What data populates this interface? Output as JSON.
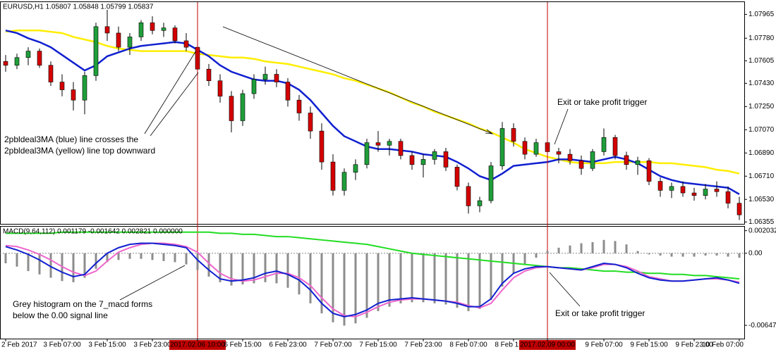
{
  "chart_data": [
    {
      "type": "candlestick",
      "title": "EURUSD,H1  1.05807 1.05848 1.05799 1.05837",
      "categories": [
        "2 Feb 2017",
        null,
        null,
        null,
        null,
        "3 Feb 07:00",
        null,
        null,
        null,
        "3 Feb 15:00",
        null,
        null,
        null,
        "3 Feb 23:00",
        null,
        null,
        null,
        "2017.02.06 10:00",
        null,
        null,
        null,
        "6 Feb 15:00",
        null,
        null,
        null,
        "6 Feb 23:00",
        null,
        null,
        null,
        "7 Feb 07:00",
        null,
        null,
        null,
        "7 Feb 15:00",
        null,
        null,
        null,
        "7 Feb 23:00",
        null,
        null,
        null,
        "8 Feb 07:00",
        null,
        null,
        null,
        "8 Feb 15:00",
        null,
        null,
        "2017.02.09 00:00",
        null,
        null,
        null,
        null,
        "9 Feb 07:00",
        null,
        null,
        null,
        "9 Feb 15:00",
        null,
        null,
        null,
        "9 Feb 23:00",
        null,
        null,
        null,
        "10 Feb 07:00"
      ],
      "open": [
        1.076,
        1.0757,
        1.0763,
        1.0768,
        1.0757,
        1.0744,
        1.0738,
        1.073,
        1.0749,
        1.0787,
        1.0782,
        1.0771,
        1.0779,
        1.079,
        1.0784,
        1.0786,
        1.0776,
        1.0771,
        1.0754,
        1.0745,
        1.0733,
        1.0714,
        1.0735,
        1.0746,
        1.075,
        1.0744,
        1.073,
        1.072,
        1.0706,
        1.0682,
        1.066,
        1.0674,
        1.068,
        1.0697,
        1.0695,
        1.0698,
        1.0687,
        1.068,
        1.0684,
        1.069,
        1.0678,
        1.0663,
        1.0648,
        1.0652,
        1.0679,
        1.0708,
        1.0698,
        1.0688,
        1.0697,
        1.069,
        1.0688,
        1.0683,
        1.0677,
        1.069,
        1.0701,
        1.0687,
        1.068,
        1.0683,
        1.0667,
        1.066,
        1.0663,
        1.0658,
        1.0656,
        1.0661,
        1.0659,
        1.065
      ],
      "high": [
        1.0765,
        1.0766,
        1.0771,
        1.077,
        1.076,
        1.075,
        1.0744,
        1.0752,
        1.079,
        1.08,
        1.0787,
        1.0782,
        1.0792,
        1.0795,
        1.079,
        1.0788,
        1.0782,
        1.0773,
        1.0758,
        1.075,
        1.0737,
        1.0738,
        1.075,
        1.0756,
        1.0754,
        1.0747,
        1.0734,
        1.0725,
        1.0712,
        1.0688,
        1.0677,
        1.0684,
        1.07,
        1.0706,
        1.07,
        1.07,
        1.069,
        1.0688,
        1.0692,
        1.0693,
        1.068,
        1.0666,
        1.0655,
        1.0682,
        1.0713,
        1.0712,
        1.0701,
        1.07,
        1.07,
        1.0693,
        1.0692,
        1.0687,
        1.0692,
        1.0708,
        1.0703,
        1.069,
        1.0686,
        1.0685,
        1.067,
        1.0666,
        1.0667,
        1.0662,
        1.0665,
        1.0667,
        1.0663,
        1.0655
      ],
      "low": [
        1.0752,
        1.0754,
        1.0757,
        1.0755,
        1.0741,
        1.0733,
        1.0722,
        1.0719,
        1.0745,
        1.0776,
        1.0768,
        1.0765,
        1.0776,
        1.0781,
        1.0779,
        1.0774,
        1.0768,
        1.075,
        1.0741,
        1.0728,
        1.0705,
        1.071,
        1.0731,
        1.0742,
        1.074,
        1.0725,
        1.0714,
        1.07,
        1.0676,
        1.0656,
        1.0656,
        1.0668,
        1.0677,
        1.069,
        1.0687,
        1.0684,
        1.0676,
        1.067,
        1.068,
        1.0675,
        1.066,
        1.0642,
        1.0643,
        1.065,
        1.0676,
        1.0694,
        1.0684,
        1.0686,
        1.0686,
        1.0681,
        1.068,
        1.0672,
        1.0675,
        1.0687,
        1.0684,
        1.0676,
        1.0672,
        1.0664,
        1.0655,
        1.0654,
        1.0655,
        1.0652,
        1.0653,
        1.0655,
        1.0646,
        1.0637
      ],
      "close": [
        1.0757,
        1.0763,
        1.0768,
        1.0757,
        1.0744,
        1.0738,
        1.073,
        1.0749,
        1.0787,
        1.0782,
        1.0771,
        1.0779,
        1.079,
        1.0784,
        1.0786,
        1.0776,
        1.0771,
        1.0754,
        1.0745,
        1.0733,
        1.0714,
        1.0735,
        1.0746,
        1.075,
        1.0744,
        1.073,
        1.072,
        1.0706,
        1.0682,
        1.066,
        1.0674,
        1.068,
        1.0697,
        1.0695,
        1.0698,
        1.0687,
        1.068,
        1.0684,
        1.069,
        1.0678,
        1.0663,
        1.0648,
        1.0652,
        1.0679,
        1.0708,
        1.0698,
        1.0688,
        1.0697,
        1.069,
        1.0688,
        1.0683,
        1.0677,
        1.069,
        1.0701,
        1.0687,
        1.068,
        1.0683,
        1.0667,
        1.066,
        1.0663,
        1.0658,
        1.0656,
        1.0661,
        1.0659,
        1.065,
        1.0641
      ],
      "up_color": "#1f9e3a",
      "down_color": "#d40000",
      "series": [
        {
          "color": "#ffee00",
          "values": [
            1.0783,
            1.0784,
            1.0784,
            1.0784,
            1.0783,
            1.0782,
            1.0779,
            1.0777,
            1.0775,
            1.0772,
            1.077,
            1.0769,
            1.0768,
            1.0768,
            1.0768,
            1.0768,
            1.0768,
            1.0766,
            1.0765,
            1.0764,
            1.0763,
            1.0763,
            1.0762,
            1.076,
            1.0759,
            1.0758,
            1.0756,
            1.0754,
            1.0752,
            1.075,
            1.0747,
            1.0745,
            1.0742,
            1.0739,
            1.0736,
            1.0732,
            1.0728,
            1.0725,
            1.0721,
            1.0718,
            1.0715,
            1.0712,
            1.0708,
            1.0705,
            1.0701,
            1.0697,
            1.0692,
            1.0689,
            1.0686,
            1.0684,
            1.0682,
            1.0681,
            1.0681,
            1.0681,
            1.0682,
            1.0682,
            1.0682,
            1.0682,
            1.0681,
            1.0681,
            1.068,
            1.0679,
            1.0678,
            1.0676,
            1.0675,
            1.0673
          ]
        },
        {
          "color": "#1020d0",
          "values": [
            1.0784,
            1.0782,
            1.0778,
            1.0775,
            1.0771,
            1.0765,
            1.0759,
            1.0753,
            1.0757,
            1.0764,
            1.0767,
            1.077,
            1.0772,
            1.0773,
            1.0774,
            1.0775,
            1.0774,
            1.0769,
            1.0764,
            1.0757,
            1.0752,
            1.0749,
            1.0746,
            1.0745,
            1.0745,
            1.0743,
            1.0738,
            1.073,
            1.072,
            1.071,
            1.0702,
            1.0698,
            1.0694,
            1.0692,
            1.0692,
            1.0691,
            1.069,
            1.0688,
            1.0687,
            1.0686,
            1.0682,
            1.0677,
            1.0671,
            1.0668,
            1.0673,
            1.0679,
            1.068,
            1.0681,
            1.0682,
            1.0684,
            1.0684,
            1.0683,
            1.0682,
            1.0684,
            1.0686,
            1.0684,
            1.0681,
            1.0676,
            1.0671,
            1.0668,
            1.0666,
            1.0665,
            1.0664,
            1.0663,
            1.0662,
            1.0657
          ]
        }
      ],
      "ylim": [
        1.0634,
        1.0806
      ],
      "yticks": [
        1.07965,
        {
          "value": 1.0778,
          "label": "1.07780"
        },
        1.07605,
        {
          "value": 1.0743,
          "label": "1.07430"
        },
        {
          "value": 1.0725,
          "label": "1.07250"
        },
        {
          "value": 1.0707,
          "label": "1.07070"
        },
        {
          "value": 1.0689,
          "label": "1.06890"
        },
        {
          "value": 1.0671,
          "label": "1.06710"
        },
        {
          "value": 1.0653,
          "label": "1.06530"
        },
        1.06355
      ],
      "annotations": [
        {
          "lines": [
            "2pbldeal3MA (blue) line crosses the",
            "2pbldeal3MA (yellow) line top downward"
          ]
        },
        {
          "lines": [
            "Exit or take profit trigger"
          ]
        }
      ]
    },
    {
      "type": "macd",
      "title": "MACD(9,64,112) 0.001179 -0.001642 0.002821 0.000000",
      "series": [
        {
          "kind": "bar",
          "color": "#8c8c8c",
          "values": [
            -0.0009,
            -0.0012,
            -0.0016,
            -0.0019,
            -0.0022,
            -0.0025,
            -0.0026,
            -0.0022,
            -0.0014,
            -0.0008,
            -0.0006,
            -0.0005,
            -0.0005,
            -0.0006,
            -0.0007,
            -0.0008,
            -0.001,
            -0.0015,
            -0.0021,
            -0.0026,
            -0.0029,
            -0.0028,
            -0.0027,
            -0.0026,
            -0.0027,
            -0.0031,
            -0.0037,
            -0.0045,
            -0.0054,
            -0.0062,
            -0.0065,
            -0.0063,
            -0.0058,
            -0.0052,
            -0.0048,
            -0.0045,
            -0.0044,
            -0.0044,
            -0.0045,
            -0.0046,
            -0.0049,
            -0.0052,
            -0.005,
            -0.0042,
            -0.003,
            -0.0018,
            -0.001,
            -0.0004,
            0.0002,
            0.0005,
            0.0007,
            0.0009,
            0.001,
            0.0012,
            0.0011,
            0.0008,
            0.0002,
            -0.0001,
            -0.0002,
            -0.0003,
            -0.0003,
            -0.0003,
            -0.0002,
            -0.0002,
            -0.0003,
            -0.0004
          ]
        },
        {
          "kind": "line",
          "color": "#22dd22",
          "values": [
            0.0018,
            0.0018,
            0.0018,
            0.0018,
            0.0018,
            0.0019,
            0.0019,
            0.0019,
            0.0019,
            0.0019,
            0.0019,
            0.0019,
            0.0019,
            0.0019,
            0.0019,
            0.0019,
            0.0019,
            0.0019,
            0.0019,
            0.0018,
            0.0018,
            0.0017,
            0.0017,
            0.0016,
            0.0015,
            0.0015,
            0.0014,
            0.0013,
            0.0012,
            0.0011,
            0.001,
            0.0009,
            0.0008,
            0.0006,
            0.0004,
            0.0002,
            0.0,
            -0.0001,
            -0.0002,
            -0.0003,
            -0.0004,
            -0.0005,
            -0.0006,
            -0.0007,
            -0.0008,
            -0.0009,
            -0.001,
            -0.0011,
            -0.0012,
            -0.0013,
            -0.0013,
            -0.0014,
            -0.0015,
            -0.0016,
            -0.0016,
            -0.0017,
            -0.0017,
            -0.0018,
            -0.0018,
            -0.0019,
            -0.0019,
            -0.002,
            -0.002,
            -0.0021,
            -0.0022,
            -0.0023
          ]
        },
        {
          "kind": "line",
          "color": "#ee66cc",
          "values": [
            0.0007,
            0.0006,
            0.0003,
            -0.0001,
            -0.0006,
            -0.0012,
            -0.0017,
            -0.002,
            -0.0016,
            -0.0007,
            0.0001,
            0.0005,
            0.0008,
            0.0009,
            0.0009,
            0.0008,
            0.0006,
            0.0001,
            -0.0009,
            -0.0018,
            -0.0023,
            -0.0025,
            -0.0024,
            -0.0021,
            -0.0018,
            -0.0018,
            -0.0022,
            -0.0029,
            -0.004,
            -0.005,
            -0.0056,
            -0.0057,
            -0.0053,
            -0.0048,
            -0.0044,
            -0.0042,
            -0.0041,
            -0.0041,
            -0.0042,
            -0.0043,
            -0.0044,
            -0.0047,
            -0.0049,
            -0.0045,
            -0.0033,
            -0.0022,
            -0.0016,
            -0.0013,
            -0.0012,
            -0.0013,
            -0.0014,
            -0.0015,
            -0.0013,
            -0.001,
            -0.001,
            -0.0012,
            -0.0016,
            -0.0021,
            -0.0023,
            -0.0025,
            -0.0025,
            -0.0024,
            -0.0023,
            -0.0023,
            -0.0024,
            -0.0026
          ]
        },
        {
          "kind": "line",
          "color": "#1020d0",
          "values": [
            0.0006,
            0.0003,
            -0.0001,
            -0.0006,
            -0.0012,
            -0.0017,
            -0.0021,
            -0.0019,
            -0.0009,
            0.0,
            0.0005,
            0.0008,
            0.0009,
            0.0009,
            0.0008,
            0.0007,
            0.0005,
            -0.0006,
            -0.0015,
            -0.0023,
            -0.0025,
            -0.0024,
            -0.0022,
            -0.0018,
            -0.0016,
            -0.0019,
            -0.0024,
            -0.0033,
            -0.0045,
            -0.0054,
            -0.0057,
            -0.0055,
            -0.0051,
            -0.0045,
            -0.0042,
            -0.0041,
            -0.004,
            -0.0041,
            -0.0042,
            -0.0043,
            -0.0045,
            -0.0048,
            -0.0048,
            -0.0041,
            -0.0027,
            -0.0018,
            -0.0014,
            -0.0012,
            -0.0012,
            -0.0013,
            -0.0014,
            -0.0015,
            -0.0012,
            -0.0009,
            -0.001,
            -0.0013,
            -0.0018,
            -0.0022,
            -0.0024,
            -0.0025,
            -0.0025,
            -0.0024,
            -0.0023,
            -0.0022,
            -0.0024,
            -0.0027
          ]
        }
      ],
      "ylim": [
        -0.00767,
        0.00239
      ],
      "yticks": [
        0.002032,
        {
          "value": 0,
          "label": "0.00"
        },
        -0.006476
      ],
      "annotations": [
        {
          "lines": [
            "Grey histogram on the 7_macd forms",
            "below the 0.00 signal line"
          ]
        },
        {
          "lines": [
            "Exit or take profit trigger"
          ]
        }
      ]
    }
  ]
}
